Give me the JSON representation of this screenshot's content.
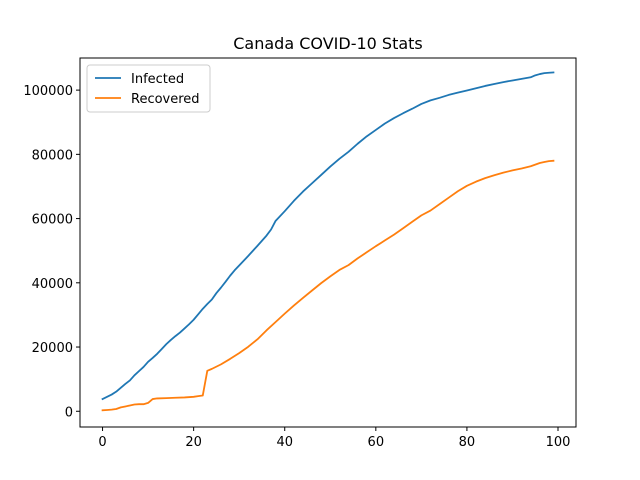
{
  "chart_data": {
    "type": "line",
    "title": "Canada COVID-10 Stats",
    "xlabel": "",
    "ylabel": "",
    "xlim": [
      -4.95,
      103.95
    ],
    "ylim": [
      -4900,
      110000
    ],
    "x_ticks": [
      0,
      20,
      40,
      60,
      80,
      100
    ],
    "y_ticks": [
      0,
      20000,
      40000,
      60000,
      80000,
      100000
    ],
    "grid": false,
    "legend_position": "upper-left",
    "series": [
      {
        "name": "Infected",
        "color": "#1f77b4",
        "x": [
          0,
          2,
          3,
          4,
          5,
          6,
          7,
          8,
          9,
          10,
          11,
          12,
          13,
          14,
          15,
          16,
          17,
          18,
          19,
          20,
          21,
          22,
          23,
          24,
          25,
          26,
          27,
          28,
          29,
          30,
          32,
          34,
          36,
          37,
          38,
          40,
          42,
          44,
          46,
          48,
          50,
          52,
          54,
          56,
          58,
          60,
          62,
          64,
          66,
          68,
          70,
          72,
          74,
          76,
          78,
          80,
          82,
          84,
          86,
          88,
          90,
          92,
          94,
          95,
          96,
          97,
          98,
          99
        ],
        "y": [
          3800,
          5200,
          6100,
          7300,
          8500,
          9600,
          11200,
          12500,
          13800,
          15400,
          16600,
          17900,
          19400,
          20900,
          22200,
          23400,
          24500,
          25800,
          27100,
          28500,
          30200,
          31900,
          33400,
          34800,
          36800,
          38500,
          40300,
          42200,
          43900,
          45400,
          48400,
          51500,
          54700,
          56600,
          59300,
          62300,
          65500,
          68400,
          71000,
          73600,
          76200,
          78600,
          80800,
          83300,
          85600,
          87600,
          89600,
          91300,
          92800,
          94200,
          95700,
          96800,
          97600,
          98500,
          99200,
          99900,
          100600,
          101300,
          101900,
          102500,
          103000,
          103500,
          104000,
          104600,
          105000,
          105300,
          105400,
          105500
        ]
      },
      {
        "name": "Recovered",
        "color": "#ff7f0e",
        "x": [
          0,
          1,
          2,
          3,
          4,
          5,
          6,
          7,
          8,
          9,
          10,
          11,
          12,
          14,
          16,
          18,
          20,
          21,
          22,
          23,
          24,
          26,
          28,
          30,
          32,
          34,
          36,
          38,
          40,
          42,
          44,
          46,
          48,
          50,
          52,
          54,
          56,
          58,
          60,
          62,
          64,
          66,
          68,
          70,
          72,
          74,
          76,
          78,
          80,
          82,
          84,
          86,
          88,
          90,
          92,
          94,
          95,
          96,
          97,
          98,
          99
        ],
        "y": [
          300,
          400,
          500,
          700,
          1200,
          1500,
          1800,
          2100,
          2200,
          2200,
          2600,
          3800,
          4000,
          4100,
          4200,
          4300,
          4500,
          4700,
          4900,
          12600,
          13200,
          14600,
          16300,
          18100,
          20100,
          22400,
          25200,
          27800,
          30400,
          32900,
          35300,
          37600,
          39900,
          42000,
          44000,
          45500,
          47600,
          49500,
          51400,
          53200,
          55000,
          57000,
          59000,
          61000,
          62500,
          64500,
          66500,
          68500,
          70200,
          71500,
          72600,
          73500,
          74300,
          75000,
          75600,
          76300,
          76800,
          77300,
          77600,
          77900,
          78000
        ]
      }
    ]
  }
}
